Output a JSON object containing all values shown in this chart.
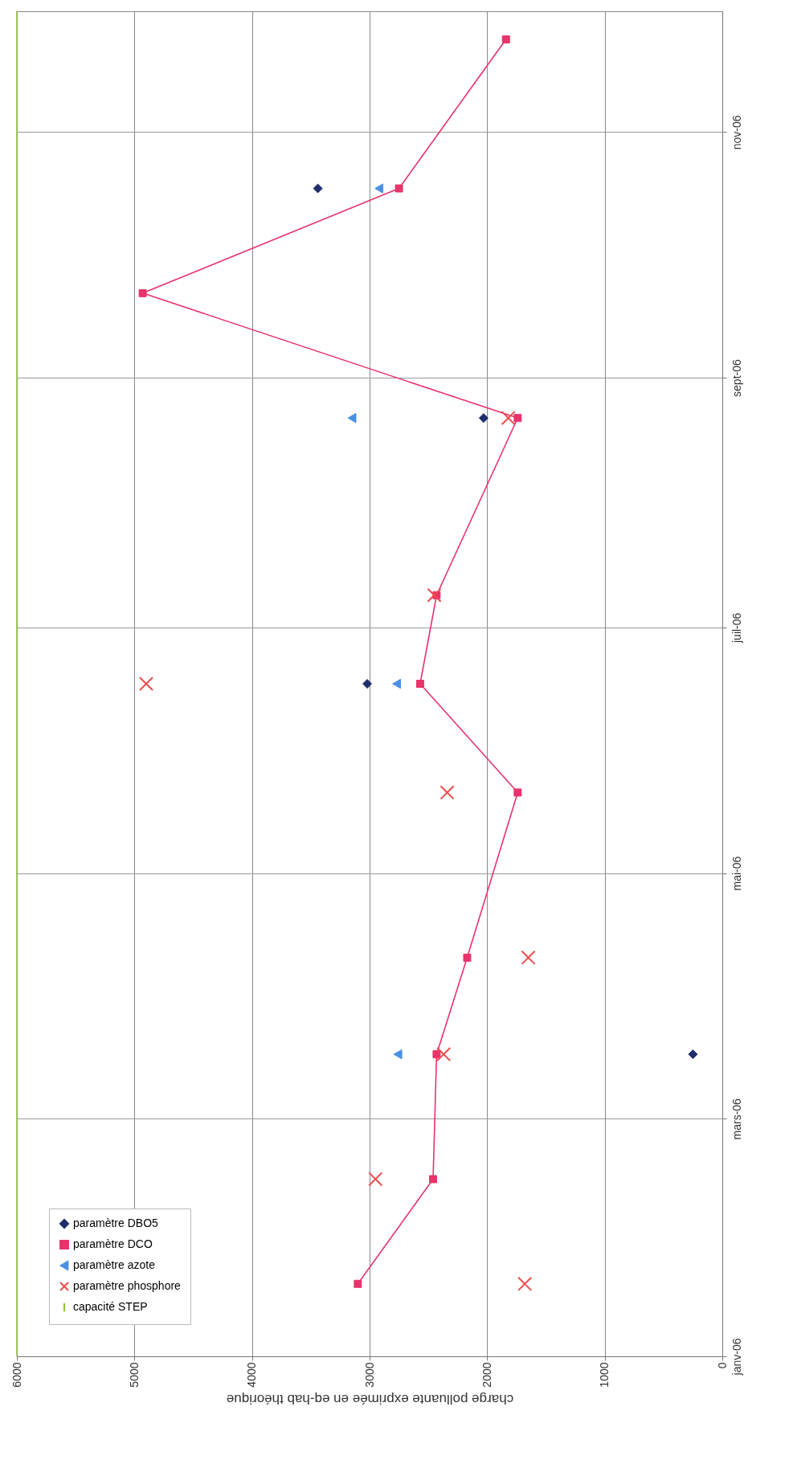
{
  "chart_data": {
    "type": "scatter",
    "orientation": "horizontal",
    "xlabel": "charge polluante exprimée en eq-hab théorique",
    "xlim": [
      6000,
      0
    ],
    "xticks": [
      0,
      1000,
      2000,
      3000,
      4000,
      5000,
      6000
    ],
    "ylim": [
      "2006-01-01",
      "2006-12-01"
    ],
    "yticks": [
      {
        "value": "2006-01-01",
        "label": "janv-06"
      },
      {
        "value": "2006-03-01",
        "label": "mars-06"
      },
      {
        "value": "2006-05-01",
        "label": "mai-06"
      },
      {
        "value": "2006-07-01",
        "label": "juil-06"
      },
      {
        "value": "2006-09-01",
        "label": "sept-06"
      },
      {
        "value": "2006-11-01",
        "label": "nov-06"
      }
    ],
    "grid": true,
    "legend": "bottom left",
    "series": [
      {
        "name": "paramètre DBO5",
        "type": "scatter",
        "marker": "diamond",
        "color": "#1f2d6b",
        "x": [
          "2006-03-17",
          "2006-06-17",
          "2006-08-22",
          "2006-10-18"
        ],
        "values": [
          250,
          3020,
          2030,
          3440
        ]
      },
      {
        "name": "paramètre DCO",
        "type": "line",
        "marker": "square",
        "color": "#e8336b",
        "x": [
          "2006-01-19",
          "2006-02-14",
          "2006-03-17",
          "2006-04-10",
          "2006-05-21",
          "2006-06-17",
          "2006-07-09",
          "2006-08-22",
          "2006-09-22",
          "2006-10-18",
          "2006-11-24"
        ],
        "values": [
          3100,
          2460,
          2430,
          2170,
          1740,
          2570,
          2430,
          1740,
          4930,
          2750,
          1840
        ]
      },
      {
        "name": "paramètre azote",
        "type": "scatter",
        "marker": "triangle",
        "color": "#4a90e2",
        "x": [
          "2006-03-17",
          "2006-06-17",
          "2006-08-22",
          "2006-10-18"
        ],
        "values": [
          2760,
          2770,
          3150,
          2920
        ]
      },
      {
        "name": "paramètre phosphore",
        "type": "scatter",
        "marker": "cross",
        "color": "#ef4b4b",
        "x": [
          "2006-01-19",
          "2006-02-14",
          "2006-03-17",
          "2006-04-10",
          "2006-05-21",
          "2006-06-17",
          "2006-07-09",
          "2006-08-22"
        ],
        "values": [
          1680,
          2950,
          2370,
          1650,
          2340,
          4900,
          2450,
          1820
        ]
      },
      {
        "name": "capacité STEP",
        "type": "line",
        "marker": "none",
        "color": "#8cbf3f",
        "x": [
          "2006-01-01",
          "2006-12-01"
        ],
        "values": [
          6000,
          6000
        ]
      }
    ]
  }
}
